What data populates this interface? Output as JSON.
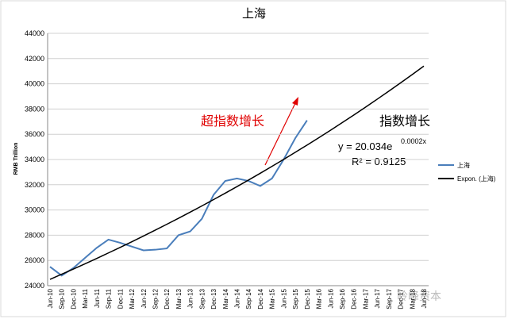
{
  "chart_data": {
    "type": "line",
    "title": "上海",
    "y_label": "RMB Trillion",
    "categories": [
      "Jun-10",
      "Sep-10",
      "Dec-10",
      "Mar-11",
      "Jun-11",
      "Sep-11",
      "Dec-11",
      "Mar-12",
      "Jun-12",
      "Sep-12",
      "Dec-12",
      "Mar-13",
      "Jun-13",
      "Sep-13",
      "Dec-13",
      "Mar-14",
      "Jun-14",
      "Sep-14",
      "Dec-14",
      "Mar-15",
      "Jun-15",
      "Sep-15",
      "Dec-15",
      "Mar-16",
      "Jun-16",
      "Sep-16",
      "Dec-16",
      "Mar-17",
      "Jun-17",
      "Sep-17",
      "Dec-17",
      "Mar-18",
      "Jun-18"
    ],
    "series": [
      {
        "name": "上海",
        "color": "#4a7ebb",
        "values": [
          25500,
          24800,
          25400,
          26200,
          27000,
          27650,
          27400,
          27100,
          26800,
          26850,
          26950,
          28000,
          28300,
          29300,
          31200,
          32300,
          32500,
          32300,
          31900,
          32500,
          34000,
          35700,
          37100,
          null,
          null,
          null,
          null,
          null,
          null,
          null,
          null,
          null,
          null
        ]
      },
      {
        "name": "Expon. (上海)",
        "color": "#000000",
        "values": [
          24500,
          24905,
          25317,
          25736,
          26161,
          26594,
          27033,
          27480,
          27935,
          28397,
          28866,
          29343,
          29828,
          30321,
          30823,
          31332,
          31850,
          32377,
          32912,
          33456,
          34009,
          34571,
          35143,
          35724,
          36314,
          36915,
          37525,
          38145,
          38776,
          39417,
          40069,
          40731,
          41404
        ]
      }
    ],
    "ylim": [
      24000,
      44000
    ],
    "yticks": [
      24000,
      26000,
      28000,
      30000,
      32000,
      34000,
      36000,
      38000,
      40000,
      42000,
      44000
    ],
    "grid": true,
    "legend": "right",
    "annotations": {
      "super": "超指数增长",
      "exp": "指数增长",
      "equation_base": "y = 20.034e",
      "equation_exponent": "0.0002x",
      "r2": "R² = 0.9125"
    },
    "watermark": "岭峰资本"
  }
}
